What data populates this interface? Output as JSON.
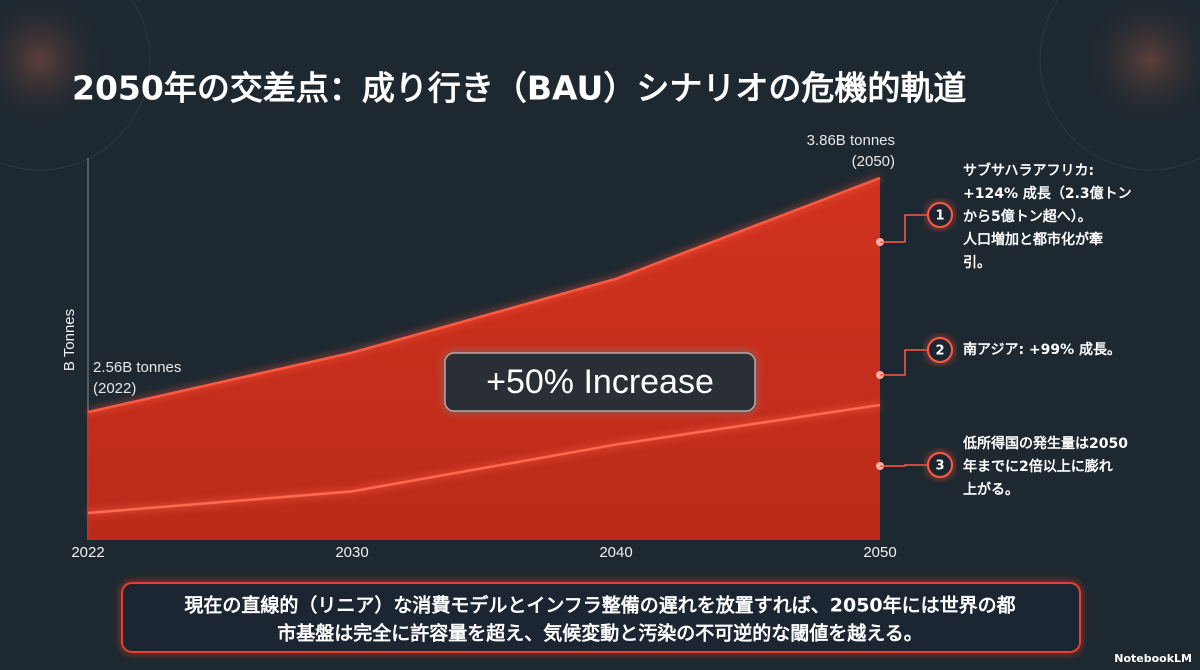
{
  "title": "2050年の交差点：成り行き（BAU）シナリオの危機的軌道",
  "chart_data": {
    "type": "area",
    "y_label": "B Tonnes",
    "categories": [
      "2022",
      "2030",
      "2040",
      "2050"
    ],
    "series": [
      {
        "color": "#e8412a",
        "values": [
          2.56,
          2.89,
          3.3,
          3.86
        ]
      },
      {
        "color": "#ff6a50",
        "values": [
          2.0,
          2.12,
          2.38,
          2.6
        ]
      }
    ],
    "ylim": [
      1.85,
      3.96
    ],
    "annotations": [
      {
        "lines": [
          "3.86B tonnes",
          "(2050)"
        ]
      },
      {
        "lines": [
          "2.56B tonnes",
          "(2022)"
        ]
      },
      {
        "lines": [
          "+50% Increase"
        ]
      }
    ]
  },
  "callouts": [
    {
      "number": 1,
      "lines": [
        "サブサハラアフリカ:",
        "+124% 成長（2.3億トン",
        "から5億トン超へ）。",
        "人口増加と都市化が牽",
        "引。"
      ]
    },
    {
      "number": 2,
      "lines": [
        "南アジア: +99% 成長。"
      ]
    },
    {
      "number": 3,
      "lines": [
        "低所得国の発生量は2050",
        "年までに2倍以上に膨れ",
        "上がる。"
      ]
    }
  ],
  "footer": {
    "lines": [
      "現在の直線的（リニア）な消費モデルとインフラ整備の遅れを放置すれば、2050年には世界の都",
      "市基盤は完全に許容量を超え、気候変動と汚染の不可逆的な閾値を越える。"
    ]
  },
  "logo": "NotebookLM"
}
